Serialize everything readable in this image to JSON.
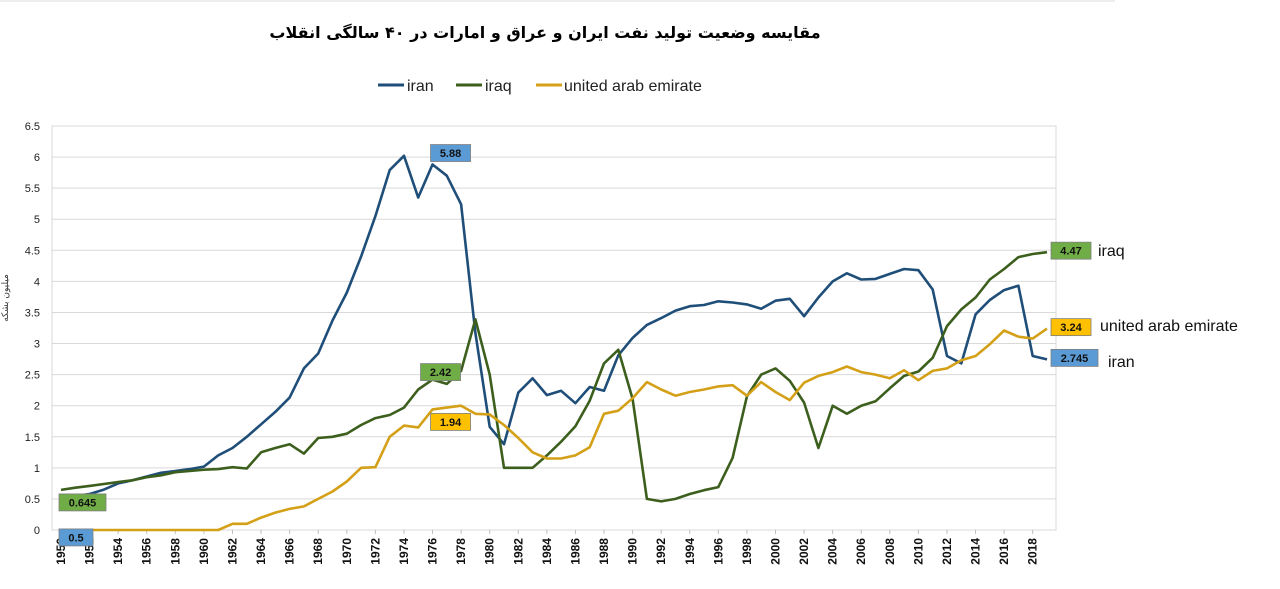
{
  "chart_data": {
    "type": "line",
    "title": "مقایسه وضعیت تولید نفت ایران و عراق و امارات در ۴۰ سالگی انقلاب",
    "ylabel": "میلیون بشکه",
    "xlabel": "",
    "ylim": [
      0,
      6.5
    ],
    "yticks": [
      "0",
      "0.5",
      "1",
      "1.5",
      "2",
      "2.5",
      "3",
      "3.5",
      "4",
      "4.5",
      "5",
      "5.5",
      "6",
      "6.5"
    ],
    "xlim": [
      1950,
      2019
    ],
    "xticks": [
      1950,
      1952,
      1954,
      1956,
      1958,
      1960,
      1962,
      1964,
      1966,
      1968,
      1970,
      1972,
      1974,
      1976,
      1978,
      1980,
      1982,
      1984,
      1986,
      1988,
      1990,
      1992,
      1994,
      1996,
      1998,
      2000,
      2002,
      2004,
      2006,
      2008,
      2010,
      2012,
      2014,
      2016,
      2018
    ],
    "grid": "horizontal",
    "legend_position": "top",
    "x": [
      1950,
      1951,
      1952,
      1953,
      1954,
      1955,
      1956,
      1957,
      1958,
      1959,
      1960,
      1961,
      1962,
      1963,
      1964,
      1965,
      1966,
      1967,
      1968,
      1969,
      1970,
      1971,
      1972,
      1973,
      1974,
      1975,
      1976,
      1977,
      1978,
      1979,
      1980,
      1981,
      1982,
      1983,
      1984,
      1985,
      1986,
      1987,
      1988,
      1989,
      1990,
      1991,
      1992,
      1993,
      1994,
      1995,
      1996,
      1997,
      1998,
      1999,
      2000,
      2001,
      2002,
      2003,
      2004,
      2005,
      2006,
      2007,
      2008,
      2009,
      2010,
      2011,
      2012,
      2013,
      2014,
      2015,
      2016,
      2017,
      2018,
      2019
    ],
    "series": [
      {
        "name": "iran",
        "color": "#1f4e79",
        "values": [
          0.5,
          0.55,
          0.58,
          0.65,
          0.75,
          0.8,
          0.86,
          0.92,
          0.95,
          0.98,
          1.02,
          1.2,
          1.32,
          1.5,
          1.7,
          1.9,
          2.13,
          2.6,
          2.84,
          3.37,
          3.82,
          4.4,
          5.05,
          5.79,
          6.02,
          5.35,
          5.88,
          5.7,
          5.24,
          3.17,
          1.66,
          1.38,
          2.21,
          2.44,
          2.17,
          2.24,
          2.04,
          2.3,
          2.24,
          2.81,
          3.09,
          3.3,
          3.41,
          3.53,
          3.6,
          3.62,
          3.68,
          3.66,
          3.63,
          3.56,
          3.69,
          3.72,
          3.44,
          3.74,
          4.0,
          4.13,
          4.03,
          4.04,
          4.12,
          4.2,
          4.18,
          3.87,
          2.8,
          2.68,
          3.47,
          3.7,
          3.86,
          3.93,
          2.8,
          2.745
        ]
      },
      {
        "name": "iraq",
        "color": "#3d5f1d",
        "values": [
          0.645,
          0.68,
          0.71,
          0.74,
          0.77,
          0.8,
          0.85,
          0.88,
          0.93,
          0.95,
          0.97,
          0.98,
          1.01,
          0.99,
          1.25,
          1.32,
          1.38,
          1.23,
          1.48,
          1.5,
          1.55,
          1.69,
          1.8,
          1.85,
          1.97,
          2.26,
          2.42,
          2.35,
          2.56,
          3.39,
          2.5,
          1.0,
          1.0,
          1.0,
          1.2,
          1.42,
          1.67,
          2.08,
          2.68,
          2.9,
          2.11,
          0.5,
          0.46,
          0.5,
          0.58,
          0.64,
          0.69,
          1.16,
          2.15,
          2.5,
          2.6,
          2.4,
          2.05,
          1.32,
          2.0,
          1.87,
          2.0,
          2.07,
          2.28,
          2.48,
          2.55,
          2.77,
          3.28,
          3.55,
          3.74,
          4.03,
          4.2,
          4.39,
          4.44,
          4.47
        ]
      },
      {
        "name": "united arab emirate",
        "color": "#d4a017",
        "values": [
          0,
          0,
          0,
          0,
          0,
          0,
          0,
          0,
          0,
          0,
          0,
          0,
          0.1,
          0.1,
          0.2,
          0.28,
          0.34,
          0.38,
          0.5,
          0.62,
          0.78,
          1.0,
          1.01,
          1.5,
          1.68,
          1.65,
          1.94,
          1.97,
          2.0,
          1.87,
          1.86,
          1.69,
          1.48,
          1.25,
          1.15,
          1.15,
          1.2,
          1.33,
          1.87,
          1.92,
          2.12,
          2.38,
          2.26,
          2.16,
          2.22,
          2.26,
          2.31,
          2.33,
          2.16,
          2.38,
          2.22,
          2.09,
          2.37,
          2.48,
          2.54,
          2.63,
          2.54,
          2.5,
          2.44,
          2.57,
          2.41,
          2.56,
          2.6,
          2.73,
          2.8,
          2.99,
          3.21,
          3.11,
          3.08,
          3.24
        ]
      }
    ],
    "annotations": [
      {
        "text": "0.645",
        "series": "iraq",
        "x": 1950,
        "y": 0.645,
        "color": "#70ad47"
      },
      {
        "text": "0.5",
        "series": "iran",
        "x": 1950,
        "y": 0.5,
        "color": "#5b9bd5"
      },
      {
        "text": "5.88",
        "series": "iran",
        "x": 1976,
        "y": 5.88,
        "color": "#5b9bd5"
      },
      {
        "text": "2.42",
        "series": "iraq",
        "x": 1976,
        "y": 2.42,
        "color": "#70ad47"
      },
      {
        "text": "1.94",
        "series": "united arab emirate",
        "x": 1976,
        "y": 1.94,
        "color": "#ffc000"
      },
      {
        "text": "4.47",
        "series": "iraq",
        "x": 2019,
        "y": 4.47,
        "color": "#70ad47"
      },
      {
        "text": "3.24",
        "series": "united arab emirate",
        "x": 2019,
        "y": 3.24,
        "color": "#ffc000"
      },
      {
        "text": "2.745",
        "series": "iran",
        "x": 2019,
        "y": 2.745,
        "color": "#5b9bd5"
      }
    ],
    "end_labels": [
      "iraq",
      "united arab emirate",
      "iran"
    ]
  }
}
